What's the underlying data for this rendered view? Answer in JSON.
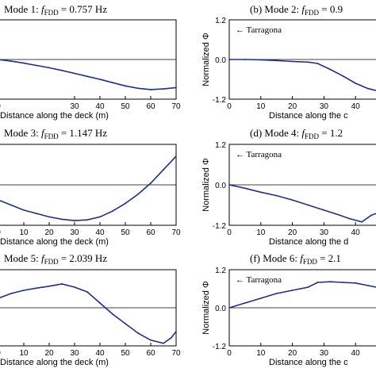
{
  "chart_data": [
    {
      "type": "line",
      "panel": "a",
      "title_pre": "Mode 1: ",
      "title_sub": "FDD",
      "title_post": " = 0.757 Hz",
      "xlabel": "Distance along the deck (m)",
      "ylabel": "",
      "annotation": "",
      "xlim": [
        0,
        70
      ],
      "ylim": [
        -1.2,
        1.2
      ],
      "xticks": [
        "0",
        "30",
        "40",
        "50",
        "60",
        "70"
      ],
      "yticks": [],
      "x": [
        0,
        5,
        10,
        15,
        20,
        25,
        30,
        35,
        40,
        45,
        50,
        55,
        60,
        65,
        70
      ],
      "values": [
        0.0,
        -0.05,
        -0.11,
        -0.18,
        -0.25,
        -0.33,
        -0.42,
        -0.51,
        -0.6,
        -0.7,
        -0.8,
        -0.87,
        -0.91,
        -0.89,
        -0.85
      ]
    },
    {
      "type": "line",
      "panel": "b",
      "title_pre": "(b) Mode 2: ",
      "title_sub": "FDD",
      "title_post": " = 0.9",
      "xlabel": "Distance along the c",
      "ylabel": "Normalized Φ",
      "annotation": "← Tarragona",
      "xlim": [
        0,
        48
      ],
      "ylim": [
        -1.2,
        1.2
      ],
      "xticks": [
        "0",
        "10",
        "20",
        "30",
        "40"
      ],
      "yticks": [
        "1.2",
        "0.0",
        "-1.2"
      ],
      "x": [
        0,
        5,
        10,
        15,
        20,
        25,
        28,
        32,
        36,
        40,
        44,
        47
      ],
      "values": [
        0.0,
        0.0,
        -0.01,
        -0.03,
        -0.06,
        -0.08,
        -0.12,
        -0.3,
        -0.5,
        -0.72,
        -0.88,
        -0.95
      ]
    },
    {
      "type": "line",
      "panel": "c",
      "title_pre": "Mode 3: ",
      "title_sub": "FDD",
      "title_post": " = 1.147 Hz",
      "xlabel": "Distance along the deck (m)",
      "ylabel": "",
      "annotation": "",
      "xlim": [
        0,
        70
      ],
      "ylim": [
        -1.2,
        1.2
      ],
      "xticks": [
        "0",
        "10",
        "20",
        "30",
        "40",
        "50",
        "60",
        "70"
      ],
      "yticks": [],
      "x": [
        0,
        5,
        10,
        15,
        20,
        25,
        30,
        35,
        40,
        45,
        50,
        55,
        60,
        65,
        70
      ],
      "values": [
        -0.45,
        -0.6,
        -0.75,
        -0.85,
        -0.95,
        -1.02,
        -1.06,
        -1.04,
        -0.95,
        -0.78,
        -0.55,
        -0.28,
        0.05,
        0.45,
        0.85
      ]
    },
    {
      "type": "line",
      "panel": "d",
      "title_pre": "(d) Mode 4: ",
      "title_sub": "FDD",
      "title_post": " = 1.2",
      "xlabel": "Distance along the d",
      "ylabel": "Normalized Φ",
      "annotation": "← Tarragona",
      "xlim": [
        0,
        48
      ],
      "ylim": [
        -1.2,
        1.2
      ],
      "xticks": [
        "0",
        "10",
        "20",
        "30",
        "40"
      ],
      "yticks": [
        "1.2",
        "0.0",
        "-1.2"
      ],
      "x": [
        0,
        5,
        10,
        15,
        20,
        25,
        30,
        35,
        38,
        42,
        45,
        48
      ],
      "values": [
        0.0,
        -0.1,
        -0.22,
        -0.32,
        -0.45,
        -0.6,
        -0.75,
        -0.9,
        -1.0,
        -1.1,
        -0.9,
        -0.8
      ]
    },
    {
      "type": "line",
      "panel": "e",
      "title_pre": "Mode 5: ",
      "title_sub": "FDD",
      "title_post": " = 2.039 Hz",
      "xlabel": "Distance along the deck (m)",
      "ylabel": "",
      "annotation": "",
      "xlim": [
        0,
        70
      ],
      "ylim": [
        -1.2,
        1.2
      ],
      "xticks": [
        "0",
        "10",
        "20",
        "30",
        "40",
        "50",
        "60",
        "70"
      ],
      "yticks": [],
      "x": [
        0,
        5,
        10,
        15,
        20,
        25,
        30,
        35,
        40,
        45,
        50,
        55,
        60,
        65,
        68,
        70
      ],
      "values": [
        0.3,
        0.45,
        0.55,
        0.62,
        0.68,
        0.75,
        0.65,
        0.5,
        0.15,
        -0.2,
        -0.5,
        -0.8,
        -1.02,
        -1.12,
        -0.95,
        -0.75
      ]
    },
    {
      "type": "line",
      "panel": "f",
      "title_pre": "(f) Mode 6: ",
      "title_sub": "FDD",
      "title_post": " = 2.1",
      "xlabel": "Distance along the c",
      "ylabel": "Normalized Φ",
      "annotation": "← Tarragona",
      "xlim": [
        0,
        48
      ],
      "ylim": [
        -1.2,
        1.2
      ],
      "xticks": [
        "0",
        "10",
        "20",
        "30",
        "40"
      ],
      "yticks": [
        "1.2",
        "0.0",
        "-1.2"
      ],
      "x": [
        0,
        5,
        10,
        15,
        20,
        25,
        28,
        32,
        36,
        40,
        44,
        48
      ],
      "values": [
        0.0,
        0.15,
        0.3,
        0.45,
        0.55,
        0.65,
        0.8,
        0.82,
        0.8,
        0.78,
        0.7,
        0.62
      ]
    }
  ],
  "colors": {
    "line": "#1f2f8f",
    "axes": "#000000",
    "text": "#000000",
    "background": "#ffffff"
  }
}
